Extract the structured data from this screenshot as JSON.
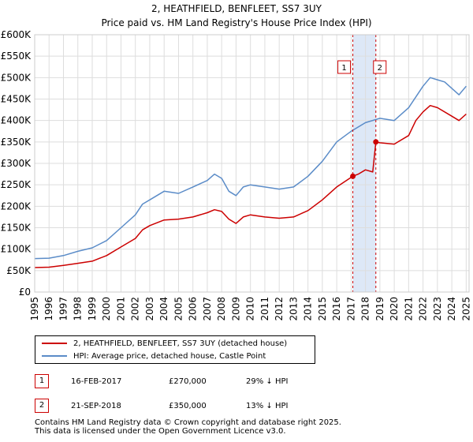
{
  "colors": {
    "property": "#cc0000",
    "hpi": "#5b8cc8",
    "band": "#dde8f7",
    "marker_line": "#cc0000",
    "grid": "#dddddd"
  },
  "chart_data": {
    "type": "line",
    "title": "2, HEATHFIELD, BENFLEET, SS7 3UY",
    "subtitle": "Price paid vs. HM Land Registry's House Price Index (HPI)",
    "xlim": [
      1995,
      2025.2
    ],
    "ylim": [
      0,
      600000
    ],
    "x_ticks": [
      "1995",
      "1996",
      "1997",
      "1998",
      "1999",
      "2000",
      "2001",
      "2002",
      "2003",
      "2004",
      "2005",
      "2006",
      "2007",
      "2008",
      "2009",
      "2010",
      "2011",
      "2012",
      "2013",
      "2014",
      "2015",
      "2016",
      "2017",
      "2018",
      "2019",
      "2020",
      "2021",
      "2022",
      "2023",
      "2024",
      "2025"
    ],
    "y_ticks": [
      "£0",
      "£50K",
      "£100K",
      "£150K",
      "£200K",
      "£250K",
      "£300K",
      "£350K",
      "£400K",
      "£450K",
      "£500K",
      "£550K",
      "£600K"
    ],
    "grid": true,
    "series": [
      {
        "name": "2, HEATHFIELD, BENFLEET, SS7 3UY (detached house)",
        "color": "#cc0000",
        "x": [
          1995.0,
          1996.0,
          1997.0,
          1998.0,
          1999.0,
          2000.0,
          2001.0,
          2002.0,
          2002.5,
          2003.0,
          2004.0,
          2005.0,
          2006.0,
          2007.0,
          2007.5,
          2008.0,
          2008.5,
          2009.0,
          2009.5,
          2010.0,
          2011.0,
          2012.0,
          2013.0,
          2014.0,
          2015.0,
          2016.0,
          2017.12,
          2017.5,
          2018.0,
          2018.5,
          2018.72,
          2019.0,
          2020.0,
          2021.0,
          2021.5,
          2022.0,
          2022.5,
          2023.0,
          2024.0,
          2024.5,
          2025.0
        ],
        "values": [
          57000,
          58000,
          62000,
          67000,
          72000,
          85000,
          105000,
          125000,
          145000,
          155000,
          168000,
          170000,
          175000,
          185000,
          192000,
          188000,
          170000,
          160000,
          175000,
          180000,
          175000,
          172000,
          175000,
          190000,
          215000,
          245000,
          270000,
          275000,
          285000,
          280000,
          350000,
          348000,
          345000,
          365000,
          400000,
          420000,
          435000,
          430000,
          410000,
          400000,
          415000
        ]
      },
      {
        "name": "HPI: Average price, detached house, Castle Point",
        "color": "#5b8cc8",
        "x": [
          1995.0,
          1996.0,
          1997.0,
          1998.0,
          1999.0,
          2000.0,
          2001.0,
          2002.0,
          2002.5,
          2003.0,
          2004.0,
          2005.0,
          2006.0,
          2007.0,
          2007.5,
          2008.0,
          2008.5,
          2009.0,
          2009.5,
          2010.0,
          2011.0,
          2012.0,
          2013.0,
          2014.0,
          2015.0,
          2016.0,
          2017.0,
          2018.0,
          2019.0,
          2020.0,
          2021.0,
          2021.5,
          2022.0,
          2022.5,
          2023.0,
          2023.5,
          2024.0,
          2024.5,
          2025.0
        ],
        "values": [
          78000,
          79000,
          85000,
          95000,
          103000,
          120000,
          150000,
          180000,
          205000,
          215000,
          235000,
          230000,
          245000,
          260000,
          275000,
          265000,
          235000,
          225000,
          245000,
          250000,
          245000,
          240000,
          245000,
          270000,
          305000,
          350000,
          375000,
          395000,
          405000,
          400000,
          430000,
          455000,
          480000,
          500000,
          495000,
          490000,
          475000,
          460000,
          480000
        ]
      }
    ],
    "sales": [
      {
        "id": "1",
        "x": 2017.12,
        "value": 270000,
        "band_start": 2017.12
      },
      {
        "id": "2",
        "x": 2018.72,
        "value": 350000,
        "band_end": 2018.72
      }
    ]
  },
  "legend": {
    "property_label": "2, HEATHFIELD, BENFLEET, SS7 3UY (detached house)",
    "hpi_label": "HPI: Average price, detached house, Castle Point"
  },
  "sales_table": [
    {
      "id": "1",
      "date": "16-FEB-2017",
      "price": "£270,000",
      "change": "29% ↓ HPI"
    },
    {
      "id": "2",
      "date": "21-SEP-2018",
      "price": "£350,000",
      "change": "13% ↓ HPI"
    }
  ],
  "footer": {
    "line1": "Contains HM Land Registry data © Crown copyright and database right 2025.",
    "line2": "This data is licensed under the Open Government Licence v3.0."
  }
}
